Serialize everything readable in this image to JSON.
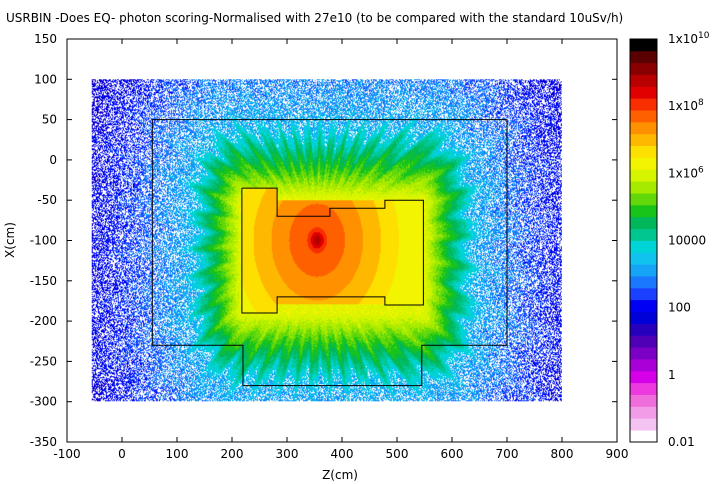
{
  "chart_data": {
    "type": "heatmap",
    "title": "USRBIN -Does EQ- photon scoring-Normalised with 27e10 (to be compared with the standard 10uSv/h)",
    "xlabel": "Z(cm)",
    "ylabel": "X(cm)",
    "xlim": [
      -100,
      900
    ],
    "ylim": [
      -350,
      150
    ],
    "x_ticks": [
      "-100",
      "0",
      "100",
      "200",
      "300",
      "400",
      "500",
      "600",
      "700",
      "800",
      "900"
    ],
    "x_tick_values": [
      -100,
      0,
      100,
      200,
      300,
      400,
      500,
      600,
      700,
      800,
      900
    ],
    "y_ticks": [
      "150",
      "100",
      "50",
      "0",
      "-50",
      "-100",
      "-150",
      "-200",
      "-250",
      "-300",
      "-350"
    ],
    "y_tick_values": [
      150,
      100,
      50,
      0,
      -50,
      -100,
      -150,
      -200,
      -250,
      -300,
      -350
    ],
    "data_extent": {
      "z": [
        -55,
        800
      ],
      "x": [
        -300,
        100
      ]
    },
    "hotspot": {
      "z": 355,
      "x": -100
    },
    "geometry_outlines": [
      {
        "name": "outer",
        "points": [
          [
            55,
            50
          ],
          [
            700,
            50
          ],
          [
            700,
            -230
          ],
          [
            545,
            -230
          ],
          [
            545,
            -280
          ],
          [
            220,
            -280
          ],
          [
            220,
            -230
          ],
          [
            55,
            -230
          ],
          [
            55,
            50
          ]
        ]
      },
      {
        "name": "inner",
        "points": [
          [
            218,
            -35
          ],
          [
            282,
            -35
          ],
          [
            282,
            -70
          ],
          [
            378,
            -70
          ],
          [
            378,
            -60
          ],
          [
            478,
            -60
          ],
          [
            478,
            -50
          ],
          [
            548,
            -50
          ],
          [
            548,
            -180
          ],
          [
            478,
            -180
          ],
          [
            478,
            -170
          ],
          [
            282,
            -170
          ],
          [
            282,
            -190
          ],
          [
            218,
            -190
          ],
          [
            218,
            -35
          ]
        ]
      }
    ],
    "colorbar": {
      "scale": "log",
      "range": [
        0.01,
        10000000000
      ],
      "labels": [
        {
          "value": 10000000000,
          "base": "1x10",
          "exp": "10"
        },
        {
          "value": 100000000,
          "base": "1x10",
          "exp": "8"
        },
        {
          "value": 1000000,
          "base": "1x10",
          "exp": "6"
        },
        {
          "value": 10000,
          "base": "10000",
          "exp": ""
        },
        {
          "value": 100,
          "base": "100",
          "exp": ""
        },
        {
          "value": 1,
          "base": "1",
          "exp": ""
        },
        {
          "value": 0.01,
          "base": "0.01",
          "exp": ""
        }
      ],
      "colors": [
        "#ffffff",
        "#f5c3f2",
        "#f29be7",
        "#f06edc",
        "#ec3ae0",
        "#d600e8",
        "#a800d6",
        "#7c00c4",
        "#4f00b6",
        "#2600bd",
        "#0000d8",
        "#0000f4",
        "#1c40ff",
        "#1a78ff",
        "#16a4f6",
        "#10c2ee",
        "#00d4d6",
        "#00c78f",
        "#00b85b",
        "#18c41a",
        "#62d80a",
        "#a6ea00",
        "#d4f400",
        "#f2f400",
        "#fee000",
        "#feb800",
        "#ff9000",
        "#fe6000",
        "#f82e00",
        "#e10000",
        "#b80000",
        "#8a0000",
        "#5a0000",
        "#000000"
      ]
    }
  }
}
